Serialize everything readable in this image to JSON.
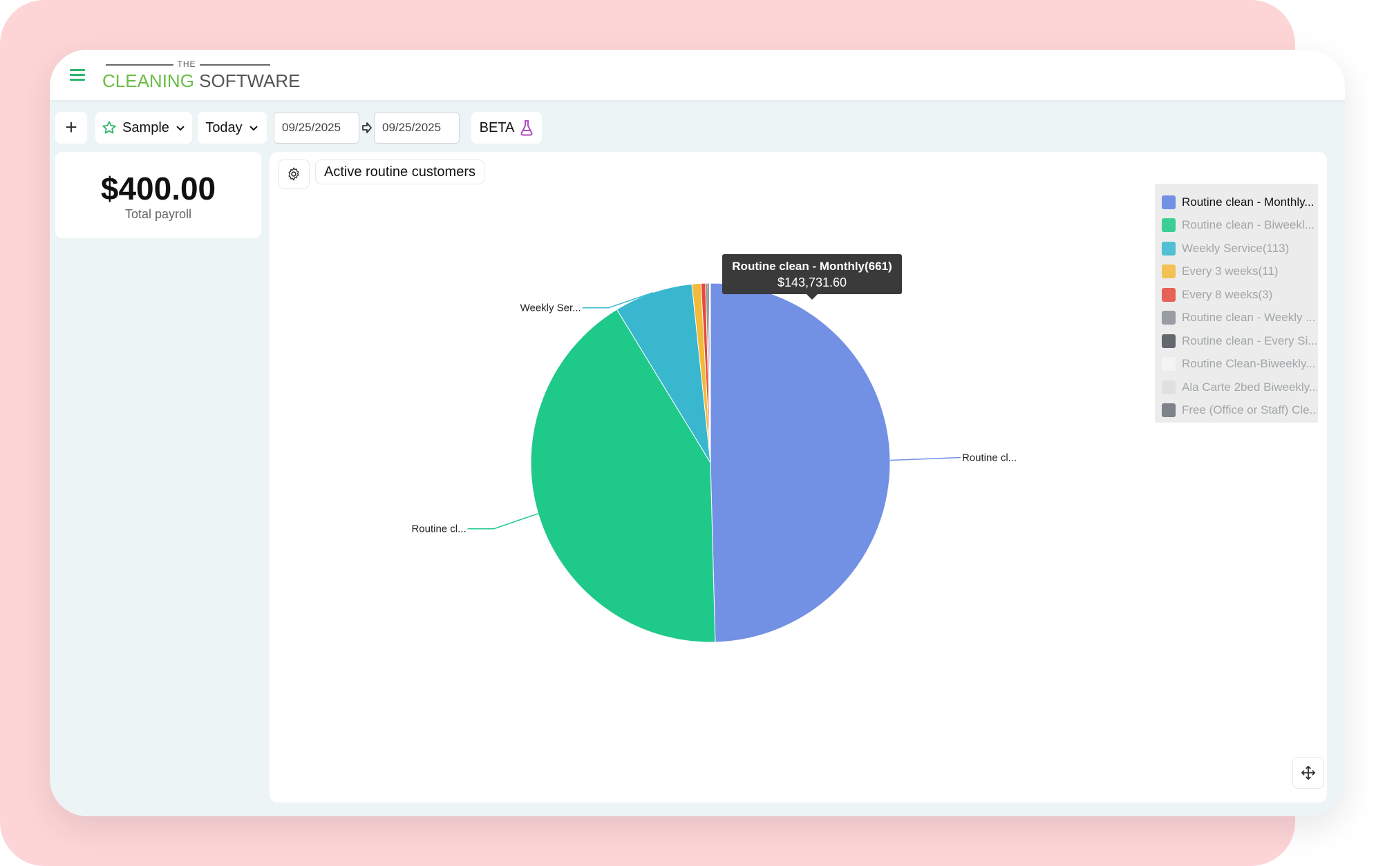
{
  "app": {
    "logo_the": "THE",
    "logo_cleaning": "CLEANING",
    "logo_software": "SOFTWARE"
  },
  "toolbar": {
    "add_label": "+",
    "sample_label": "Sample",
    "today_label": "Today",
    "date_from": "09/25/2025",
    "date_to": "09/25/2025",
    "beta_label": "BETA"
  },
  "payroll": {
    "amount": "$400.00",
    "label": "Total payroll"
  },
  "chart_panel": {
    "title": "Active routine customers"
  },
  "tooltip": {
    "name": "Routine clean - Monthly(661)",
    "value": "$143,731.60"
  },
  "colors": {
    "accent_green": "#2db56b",
    "logo_green": "#6cbc45"
  },
  "chart_data": {
    "type": "pie",
    "title": "Active routine customers",
    "series": [
      {
        "name": "Routine clean - Monthly...",
        "value": 143731.6,
        "color": "#7290e4",
        "callout": "Routine cl...",
        "callout_side": "right",
        "active": true
      },
      {
        "name": "Routine clean - Biweekl...",
        "value": 120875,
        "color": "#1fc98a",
        "callout": "Routine cl...",
        "callout_side": "left",
        "active": false
      },
      {
        "name": "Weekly Service(113)",
        "value": 20500,
        "color": "#38b7cf",
        "callout": "Weekly Ser...",
        "callout_side": "left",
        "active": false
      },
      {
        "name": "Every 3 weeks(11)",
        "value": 2350,
        "color": "#f3bb3a",
        "active": false
      },
      {
        "name": "Every 8 weeks(3)",
        "value": 1190,
        "color": "#e64a3c",
        "active": false
      },
      {
        "name": "Routine clean - Weekly ...",
        "value": 600,
        "color": "#8b8e96",
        "active": false
      },
      {
        "name": "Routine clean - Every Si...",
        "value": 360,
        "color": "#4b5058",
        "active": false
      },
      {
        "name": "Routine Clean-Biweekly...",
        "value": 150,
        "color": "#f6f6f6",
        "active": false
      },
      {
        "name": "Ala Carte 2bed Biweekly...",
        "value": 90,
        "color": "#dedede",
        "active": false
      },
      {
        "name": "Free (Office or Staff) Cle...",
        "value": 60,
        "color": "#6b7079",
        "active": false
      }
    ],
    "legend_position": "top-right"
  }
}
